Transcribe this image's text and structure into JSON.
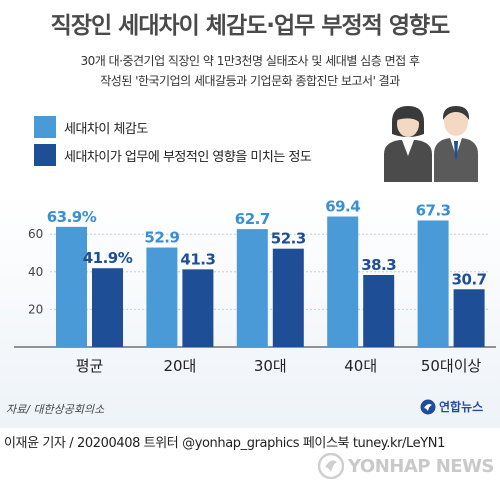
{
  "title": "직장인 세대차이 체감도·업무 부정적 영향도",
  "subtitle_lines": [
    "30개 대·중견기업 직장인 약 1만3천명 실태조사 및 세대별 심층 면접 후",
    "작성된 '한국기업의 세대갈등과 기업문화 종합진단 보고서' 결과"
  ],
  "chart_data": {
    "type": "bar",
    "categories": [
      "평균",
      "20대",
      "30대",
      "40대",
      "50대이상"
    ],
    "series": [
      {
        "name": "세대차이 체감도",
        "color": "#4a9ad8",
        "values": [
          63.9,
          52.9,
          62.7,
          69.4,
          67.3
        ],
        "labels": [
          "63.9%",
          "52.9",
          "62.7",
          "69.4",
          "67.3"
        ]
      },
      {
        "name": "세대차이가 업무에 부정적인 영향을 미치는 정도",
        "color": "#1e4f96",
        "values": [
          41.9,
          41.3,
          52.3,
          38.3,
          30.7
        ],
        "labels": [
          "41.9%",
          "41.3",
          "52.3",
          "38.3",
          "30.7"
        ]
      }
    ],
    "ylim": [
      0,
      75
    ],
    "yticks": [
      0,
      20,
      40,
      60
    ],
    "ytick_labels": [
      "",
      "20",
      "40",
      "60"
    ],
    "grid": true,
    "legend_position": "top-left"
  },
  "source": "자료/ 대한상공회의소",
  "logo_text": "연합뉴스",
  "credit": "이재윤 기자 / 20200408   트위터 @yonhap_graphics  페이스북 tuney.kr/LeYN1",
  "watermark": "YONHAP NEWS",
  "icons": {
    "people": "office-workers-icon",
    "logo": "yonhap-logo-icon",
    "watermark": "yonhap-watermark-icon"
  }
}
